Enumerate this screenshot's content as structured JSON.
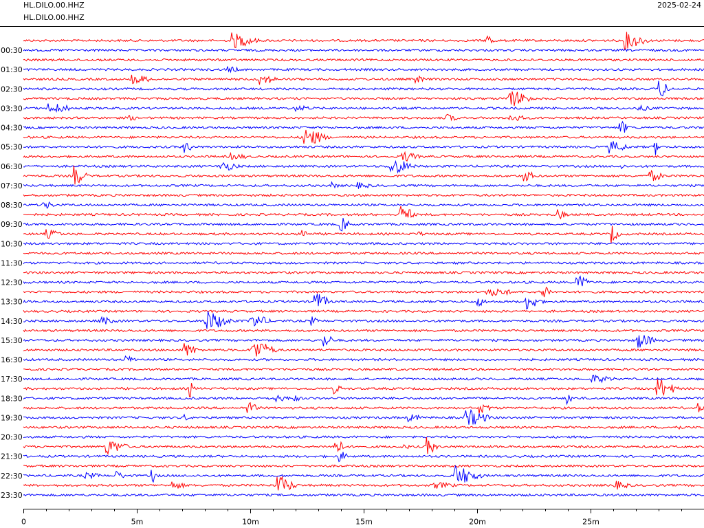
{
  "chart_data": {
    "type": "helicorder",
    "title": "HL.DILO.00.HHZ",
    "subtitle": "HL.DILO.00.HHZ",
    "date": "2025-02-24",
    "colors": [
      "#ff0000",
      "#0000ff"
    ],
    "xlim": [
      0,
      30
    ],
    "xticks": [
      0,
      {
        "value": 5,
        "label": "5m"
      },
      {
        "value": 10,
        "label": "10m"
      },
      {
        "value": 15,
        "label": "15m"
      },
      {
        "value": 20,
        "label": "20m"
      },
      {
        "value": 25,
        "label": "25m"
      }
    ],
    "ylim": [
      0,
      23.5
    ],
    "yticks": [
      {
        "value": 0.5,
        "label": "00:30"
      },
      {
        "value": 1.5,
        "label": "01:30"
      },
      {
        "value": 2.5,
        "label": "02:30"
      },
      {
        "value": 3.5,
        "label": "03:30"
      },
      {
        "value": 4.5,
        "label": "04:30"
      },
      {
        "value": 5.5,
        "label": "05:30"
      },
      {
        "value": 6.5,
        "label": "06:30"
      },
      {
        "value": 7.5,
        "label": "07:30"
      },
      {
        "value": 8.5,
        "label": "08:30"
      },
      {
        "value": 9.5,
        "label": "09:30"
      },
      {
        "value": 10.5,
        "label": "10:30"
      },
      {
        "value": 11.5,
        "label": "11:30"
      },
      {
        "value": 12.5,
        "label": "12:30"
      },
      {
        "value": 13.5,
        "label": "13:30"
      },
      {
        "value": 14.5,
        "label": "14:30"
      },
      {
        "value": 15.5,
        "label": "15:30"
      },
      {
        "value": 16.5,
        "label": "16:30"
      },
      {
        "value": 17.5,
        "label": "17:30"
      },
      {
        "value": 18.5,
        "label": "18:30"
      },
      {
        "value": 19.5,
        "label": "19:30"
      },
      {
        "value": 20.5,
        "label": "20:30"
      },
      {
        "value": 21.5,
        "label": "21:30"
      },
      {
        "value": 22.5,
        "label": "22:30"
      },
      {
        "value": 23.5,
        "label": "23:30"
      }
    ]
  }
}
